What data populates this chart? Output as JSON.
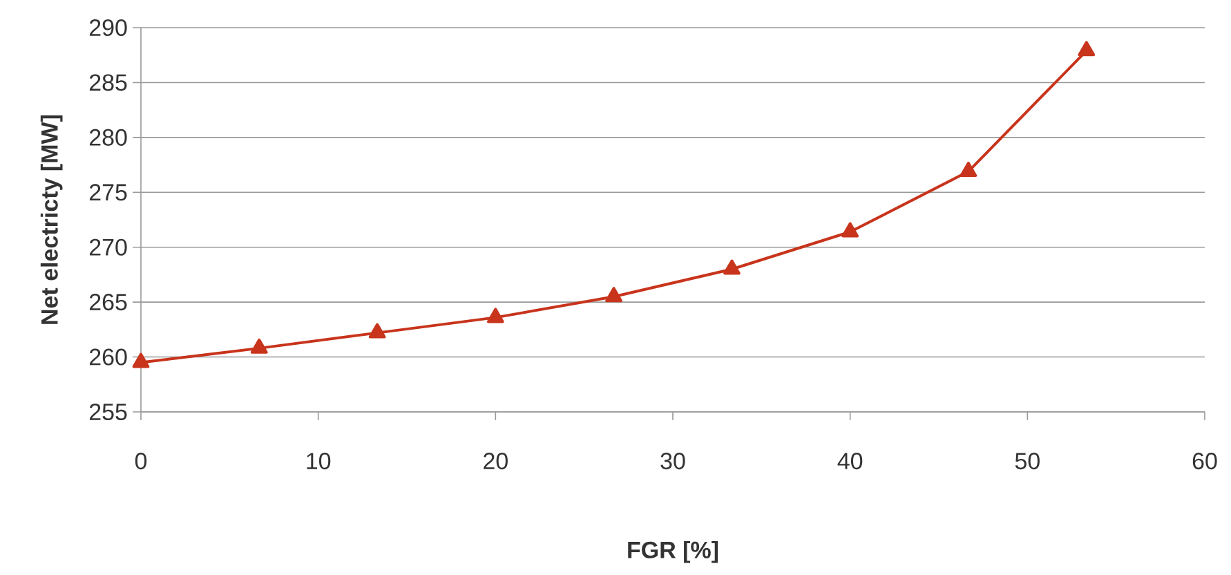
{
  "chart_data": {
    "type": "line",
    "xlabel": "FGR [%]",
    "ylabel": "Net electricty [MW]",
    "x": [
      0,
      6.67,
      13.33,
      20,
      26.67,
      33.33,
      40,
      46.67,
      53.33
    ],
    "series": [
      {
        "color": "#c8341c",
        "values": [
          259.5,
          260.8,
          262.2,
          263.6,
          265.5,
          268.0,
          271.4,
          276.9,
          287.9
        ]
      }
    ],
    "xlim": [
      0,
      60
    ],
    "xticks": [
      0,
      10,
      20,
      30,
      40,
      50,
      60
    ],
    "ylim": [
      255,
      290
    ],
    "yticks": [
      255,
      260,
      265,
      270,
      275,
      280,
      285,
      290
    ],
    "grid": "y",
    "marker": "triangle",
    "line_style": "solid"
  }
}
